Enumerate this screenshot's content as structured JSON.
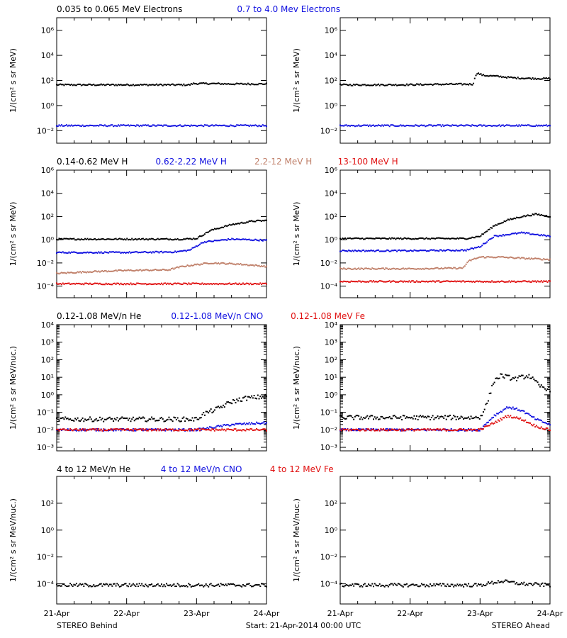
{
  "footer": {
    "left": "STEREO Behind",
    "center": "Start: 21-Apr-2014 00:00 UTC",
    "right": "STEREO Ahead"
  },
  "colors": {
    "black": "#000000",
    "blue": "#1010e0",
    "tan": "#c0806a",
    "red": "#e01010"
  },
  "x_ticks": [
    "21-Apr",
    "22-Apr",
    "23-Apr",
    "24-Apr"
  ],
  "chart_data": [
    {
      "type": "scatter",
      "row": "electrons",
      "ylabel": "1/(cm² s sr MeV)",
      "ylim_log10": [
        -3,
        7
      ],
      "yticks": [
        "10⁻²",
        "10⁰",
        "10²",
        "10⁴",
        "10⁶"
      ],
      "yticks_log10": [
        -2,
        0,
        2,
        4,
        6
      ],
      "header": [
        {
          "text": "0.035 to 0.065 MeV Electrons",
          "color": "#000000"
        },
        {
          "text": "0.7 to 4.0 Mev Electrons",
          "color": "#1010e0"
        }
      ],
      "panels": [
        {
          "name": "STEREO Behind",
          "series": [
            {
              "color": "#000000",
              "points": [
                [
                  0,
                  1.65
                ],
                [
                  0.5,
                  1.65
                ],
                [
                  1,
                  1.65
                ],
                [
                  1.5,
                  1.65
                ],
                [
                  1.9,
                  1.65
                ],
                [
                  1.95,
                  1.75
                ],
                [
                  2.2,
                  1.75
                ],
                [
                  2.5,
                  1.72
                ],
                [
                  3,
                  1.72
                ]
              ]
            },
            {
              "color": "#1010e0",
              "points": [
                [
                  0,
                  -1.6
                ],
                [
                  1,
                  -1.6
                ],
                [
                  2,
                  -1.6
                ],
                [
                  3,
                  -1.6
                ]
              ]
            }
          ]
        },
        {
          "name": "STEREO Ahead",
          "series": [
            {
              "color": "#000000",
              "points": [
                [
                  0,
                  1.65
                ],
                [
                  0.8,
                  1.65
                ],
                [
                  1.6,
                  1.7
                ],
                [
                  1.9,
                  1.7
                ],
                [
                  1.95,
                  2.6
                ],
                [
                  2.05,
                  2.4
                ],
                [
                  2.2,
                  2.35
                ],
                [
                  2.5,
                  2.2
                ],
                [
                  2.8,
                  2.15
                ],
                [
                  3,
                  2.15
                ]
              ]
            },
            {
              "color": "#1010e0",
              "points": [
                [
                  0,
                  -1.6
                ],
                [
                  1,
                  -1.6
                ],
                [
                  2,
                  -1.6
                ],
                [
                  3,
                  -1.6
                ]
              ]
            }
          ]
        }
      ]
    },
    {
      "type": "scatter",
      "row": "protons",
      "ylabel": "1/(cm² s sr MeV)",
      "ylim_log10": [
        -5,
        6
      ],
      "yticks": [
        "10⁻⁴",
        "10⁻²",
        "10⁰",
        "10²",
        "10⁴",
        "10⁶"
      ],
      "yticks_log10": [
        -4,
        -2,
        0,
        2,
        4,
        6
      ],
      "header": [
        {
          "text": "0.14-0.62 MeV H",
          "color": "#000000"
        },
        {
          "text": "0.62-2.22 MeV H",
          "color": "#1010e0"
        },
        {
          "text": "2.2-12 MeV H",
          "color": "#c0806a"
        },
        {
          "text": "13-100 MeV H",
          "color": "#e01010"
        }
      ],
      "panels": [
        {
          "name": "STEREO Behind",
          "series": [
            {
              "color": "#000000",
              "points": [
                [
                  0,
                  0.05
                ],
                [
                  1,
                  0.05
                ],
                [
                  1.8,
                  0.05
                ],
                [
                  2,
                  0.1
                ],
                [
                  2.2,
                  0.8
                ],
                [
                  2.5,
                  1.3
                ],
                [
                  2.8,
                  1.6
                ],
                [
                  3,
                  1.65
                ]
              ]
            },
            {
              "color": "#1010e0",
              "points": [
                [
                  0,
                  -1.1
                ],
                [
                  1,
                  -1.1
                ],
                [
                  1.7,
                  -1.05
                ],
                [
                  1.9,
                  -0.9
                ],
                [
                  2.1,
                  -0.2
                ],
                [
                  2.5,
                  0.05
                ],
                [
                  3,
                  -0.05
                ]
              ]
            },
            {
              "color": "#c0806a",
              "points": [
                [
                  0,
                  -2.9
                ],
                [
                  0.5,
                  -2.75
                ],
                [
                  1,
                  -2.65
                ],
                [
                  1.6,
                  -2.6
                ],
                [
                  1.8,
                  -2.3
                ],
                [
                  2.2,
                  -2.0
                ],
                [
                  2.6,
                  -2.1
                ],
                [
                  3,
                  -2.3
                ]
              ]
            },
            {
              "color": "#e01010",
              "points": [
                [
                  0,
                  -3.8
                ],
                [
                  1,
                  -3.8
                ],
                [
                  2,
                  -3.8
                ],
                [
                  3,
                  -3.8
                ]
              ]
            }
          ]
        },
        {
          "name": "STEREO Ahead",
          "series": [
            {
              "color": "#000000",
              "points": [
                [
                  0,
                  0.1
                ],
                [
                  1,
                  0.1
                ],
                [
                  1.8,
                  0.1
                ],
                [
                  2.0,
                  0.3
                ],
                [
                  2.2,
                  1.2
                ],
                [
                  2.4,
                  1.7
                ],
                [
                  2.6,
                  2.0
                ],
                [
                  2.8,
                  2.2
                ],
                [
                  3,
                  2.0
                ]
              ]
            },
            {
              "color": "#1010e0",
              "points": [
                [
                  0,
                  -0.95
                ],
                [
                  1,
                  -0.95
                ],
                [
                  1.8,
                  -0.9
                ],
                [
                  2.0,
                  -0.6
                ],
                [
                  2.2,
                  0.3
                ],
                [
                  2.6,
                  0.6
                ],
                [
                  3,
                  0.3
                ]
              ]
            },
            {
              "color": "#c0806a",
              "points": [
                [
                  0,
                  -2.5
                ],
                [
                  1,
                  -2.5
                ],
                [
                  1.75,
                  -2.45
                ],
                [
                  1.85,
                  -1.8
                ],
                [
                  2.0,
                  -1.5
                ],
                [
                  2.3,
                  -1.5
                ],
                [
                  2.6,
                  -1.6
                ],
                [
                  3,
                  -1.7
                ]
              ]
            },
            {
              "color": "#e01010",
              "points": [
                [
                  0,
                  -3.6
                ],
                [
                  1,
                  -3.6
                ],
                [
                  2,
                  -3.6
                ],
                [
                  3,
                  -3.6
                ]
              ]
            }
          ]
        }
      ]
    },
    {
      "type": "scatter",
      "row": "heavy-low",
      "ylabel": "1/(cm² s sr MeV/nuc.)",
      "ylim_log10": [
        -3.2,
        4
      ],
      "yticks": [
        "10⁻³",
        "10⁻²",
        "10⁻¹",
        "10⁰",
        "10¹",
        "10²",
        "10³",
        "10⁴"
      ],
      "yticks_log10": [
        -3,
        -2,
        -1,
        0,
        1,
        2,
        3,
        4
      ],
      "header": [
        {
          "text": "0.12-1.08 MeV/n He",
          "color": "#000000"
        },
        {
          "text": "0.12-1.08 MeV/n CNO",
          "color": "#1010e0"
        },
        {
          "text": "0.12-1.08 MeV Fe",
          "color": "#e01010"
        }
      ],
      "panels": [
        {
          "name": "STEREO Behind",
          "series": [
            {
              "color": "#000000",
              "points": [
                [
                  0,
                  -1.4
                ],
                [
                  1,
                  -1.4
                ],
                [
                  2,
                  -1.4
                ],
                [
                  2.1,
                  -1.1
                ],
                [
                  2.3,
                  -0.8
                ],
                [
                  2.5,
                  -0.4
                ],
                [
                  2.7,
                  -0.2
                ],
                [
                  3,
                  -0.1
                ]
              ]
            },
            {
              "color": "#1010e0",
              "points": [
                [
                  0,
                  -2.0
                ],
                [
                  1,
                  -2.0
                ],
                [
                  2,
                  -2.0
                ],
                [
                  2.5,
                  -1.7
                ],
                [
                  3,
                  -1.6
                ]
              ]
            },
            {
              "color": "#e01010",
              "points": [
                [
                  0,
                  -2.0
                ],
                [
                  1,
                  -2.0
                ],
                [
                  2,
                  -2.0
                ],
                [
                  3,
                  -2.0
                ]
              ]
            }
          ]
        },
        {
          "name": "STEREO Ahead",
          "series": [
            {
              "color": "#000000",
              "points": [
                [
                  0,
                  -1.3
                ],
                [
                  1,
                  -1.3
                ],
                [
                  2,
                  -1.3
                ],
                [
                  2.1,
                  -0.5
                ],
                [
                  2.2,
                  0.8
                ],
                [
                  2.3,
                  1.1
                ],
                [
                  2.5,
                  0.9
                ],
                [
                  2.7,
                  1.1
                ],
                [
                  2.85,
                  0.5
                ],
                [
                  3,
                  0.3
                ]
              ]
            },
            {
              "color": "#1010e0",
              "points": [
                [
                  0,
                  -2.0
                ],
                [
                  1,
                  -2.0
                ],
                [
                  2,
                  -2.0
                ],
                [
                  2.2,
                  -1.2
                ],
                [
                  2.4,
                  -0.7
                ],
                [
                  2.6,
                  -0.9
                ],
                [
                  2.8,
                  -1.4
                ],
                [
                  3,
                  -1.7
                ]
              ]
            },
            {
              "color": "#e01010",
              "points": [
                [
                  0,
                  -2.0
                ],
                [
                  1,
                  -2.0
                ],
                [
                  2,
                  -2.0
                ],
                [
                  2.2,
                  -1.6
                ],
                [
                  2.4,
                  -1.2
                ],
                [
                  2.6,
                  -1.4
                ],
                [
                  2.8,
                  -1.8
                ],
                [
                  3,
                  -2.0
                ]
              ]
            }
          ]
        }
      ]
    },
    {
      "type": "scatter",
      "row": "heavy-high",
      "ylabel": "1/(cm² s sr MeV/nuc.)",
      "ylim_log10": [
        -5.5,
        4
      ],
      "yticks": [
        "10⁻⁴",
        "10⁻²",
        "10⁰",
        "10²"
      ],
      "yticks_log10": [
        -4,
        -2,
        0,
        2
      ],
      "header": [
        {
          "text": "4 to 12 MeV/n He",
          "color": "#000000"
        },
        {
          "text": "4 to 12 MeV/n CNO",
          "color": "#1010e0"
        },
        {
          "text": "4 to 12 MeV Fe",
          "color": "#e01010"
        }
      ],
      "panels": [
        {
          "name": "STEREO Behind",
          "series": [
            {
              "color": "#000000",
              "points": [
                [
                  0,
                  -4.1
                ],
                [
                  1,
                  -4.1
                ],
                [
                  2,
                  -4.1
                ],
                [
                  3,
                  -4.1
                ]
              ]
            }
          ]
        },
        {
          "name": "STEREO Ahead",
          "series": [
            {
              "color": "#000000",
              "points": [
                [
                  0,
                  -4.1
                ],
                [
                  1,
                  -4.1
                ],
                [
                  2,
                  -4.1
                ],
                [
                  2.3,
                  -3.8
                ],
                [
                  2.6,
                  -4.0
                ],
                [
                  3,
                  -4.1
                ]
              ]
            }
          ]
        }
      ]
    }
  ]
}
